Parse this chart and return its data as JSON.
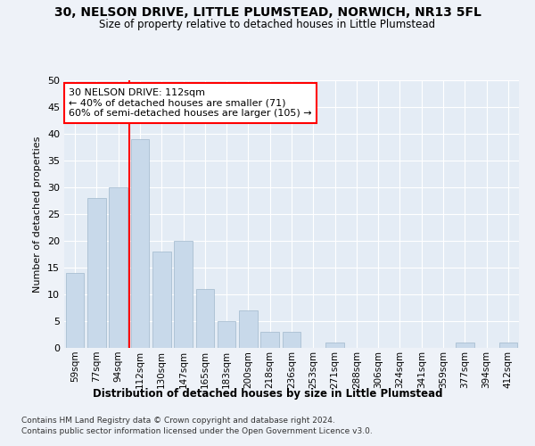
{
  "title_line1": "30, NELSON DRIVE, LITTLE PLUMSTEAD, NORWICH, NR13 5FL",
  "title_line2": "Size of property relative to detached houses in Little Plumstead",
  "xlabel": "Distribution of detached houses by size in Little Plumstead",
  "ylabel": "Number of detached properties",
  "categories": [
    "59sqm",
    "77sqm",
    "94sqm",
    "112sqm",
    "130sqm",
    "147sqm",
    "165sqm",
    "183sqm",
    "200sqm",
    "218sqm",
    "236sqm",
    "253sqm",
    "271sqm",
    "288sqm",
    "306sqm",
    "324sqm",
    "341sqm",
    "359sqm",
    "377sqm",
    "394sqm",
    "412sqm"
  ],
  "values": [
    14,
    28,
    30,
    39,
    18,
    20,
    11,
    5,
    7,
    3,
    3,
    0,
    1,
    0,
    0,
    0,
    0,
    0,
    1,
    0,
    1
  ],
  "bar_color": "#c8d9ea",
  "bar_edgecolor": "#a0b8cc",
  "redline_index": 3,
  "ylim": [
    0,
    50
  ],
  "yticks": [
    0,
    5,
    10,
    15,
    20,
    25,
    30,
    35,
    40,
    45,
    50
  ],
  "annotation_text": "30 NELSON DRIVE: 112sqm\n← 40% of detached houses are smaller (71)\n60% of semi-detached houses are larger (105) →",
  "annotation_box_color": "white",
  "annotation_box_edgecolor": "red",
  "footnote_line1": "Contains HM Land Registry data © Crown copyright and database right 2024.",
  "footnote_line2": "Contains public sector information licensed under the Open Government Licence v3.0.",
  "bg_color": "#eef2f8",
  "plot_bg_color": "#e4ecf5"
}
